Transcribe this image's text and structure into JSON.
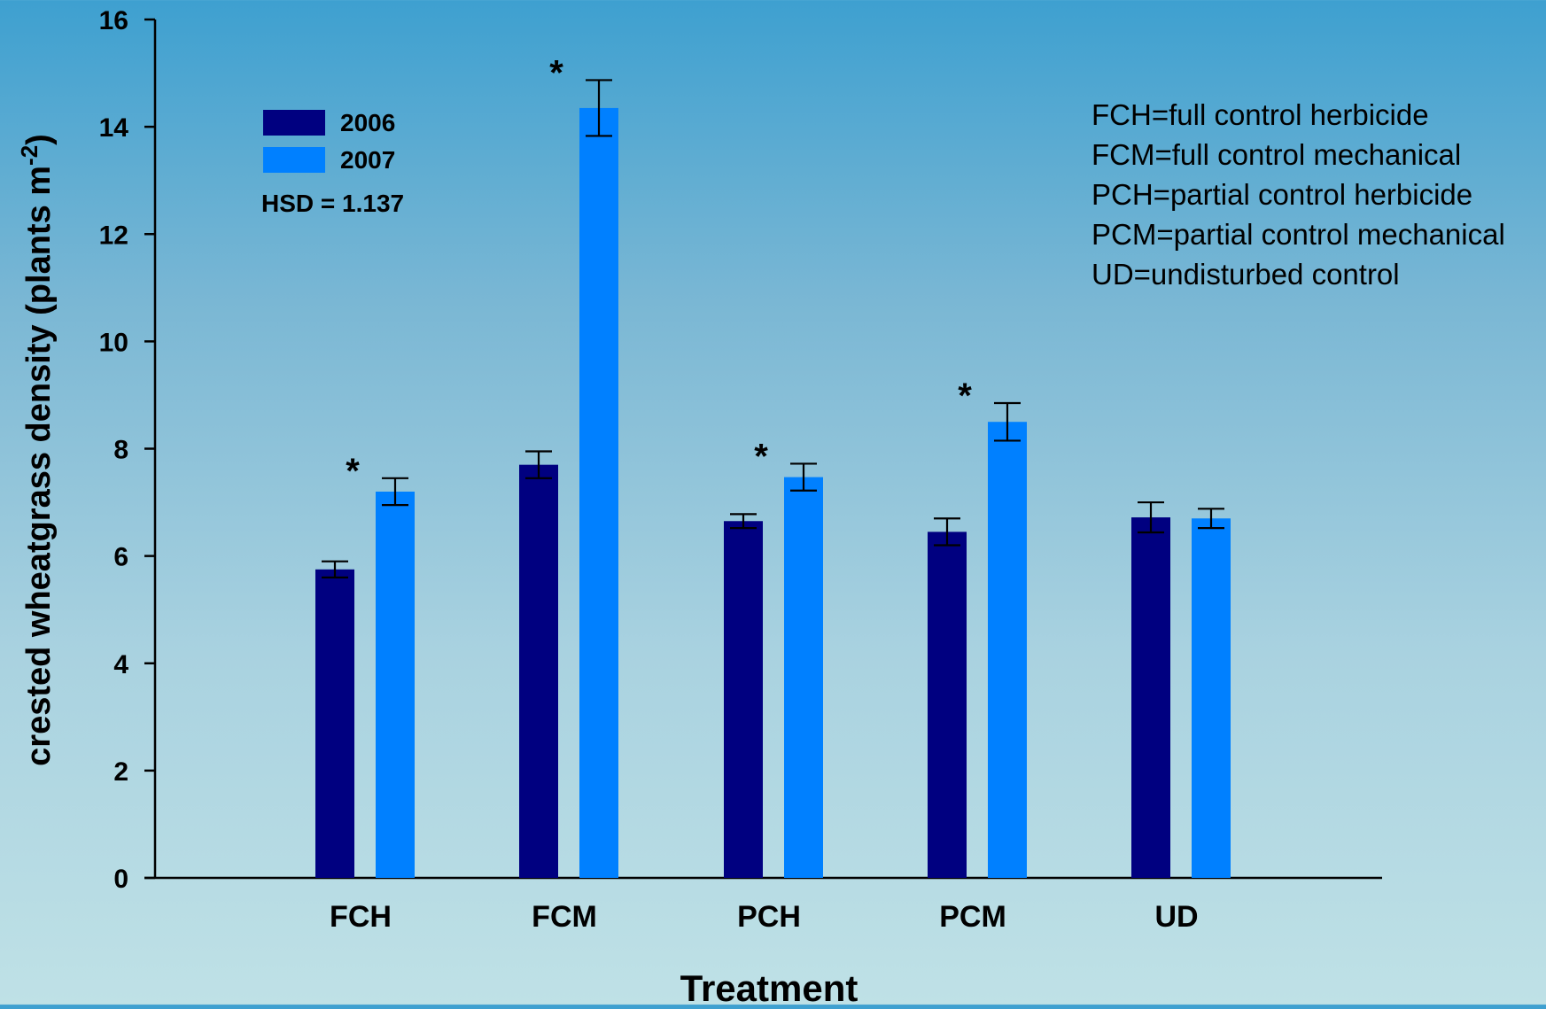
{
  "chart_data": {
    "type": "bar",
    "xlabel": "Treatment",
    "ylabel": "crested wheatgrass density (plants m",
    "ylabel_sup": "-2",
    "ylabel_close": ")",
    "ylim": [
      0,
      16
    ],
    "yticks": [
      "0",
      "2",
      "4",
      "6",
      "8",
      "10",
      "12",
      "14",
      "16"
    ],
    "grid": false,
    "legend_position": "top-left",
    "categories": [
      "FCH",
      "FCM",
      "PCH",
      "PCM",
      "UD"
    ],
    "series": [
      {
        "name": "2006",
        "color": "#000080",
        "values": [
          5.75,
          7.7,
          6.65,
          6.45,
          6.72
        ],
        "errors": [
          0.15,
          0.25,
          0.13,
          0.25,
          0.28
        ]
      },
      {
        "name": "2007",
        "color": "#0080ff",
        "values": [
          7.2,
          14.35,
          7.47,
          8.5,
          6.7
        ],
        "errors": [
          0.25,
          0.52,
          0.25,
          0.35,
          0.18
        ]
      }
    ],
    "significance_marker": "*",
    "significant": [
      true,
      true,
      true,
      true,
      false
    ],
    "annotation": "HSD = 1.137",
    "notes": [
      "FCH=full control herbicide",
      "FCM=full control mechanical",
      "PCH=partial control herbicide",
      "PCM=partial control mechanical",
      "UD=undisturbed control"
    ]
  }
}
